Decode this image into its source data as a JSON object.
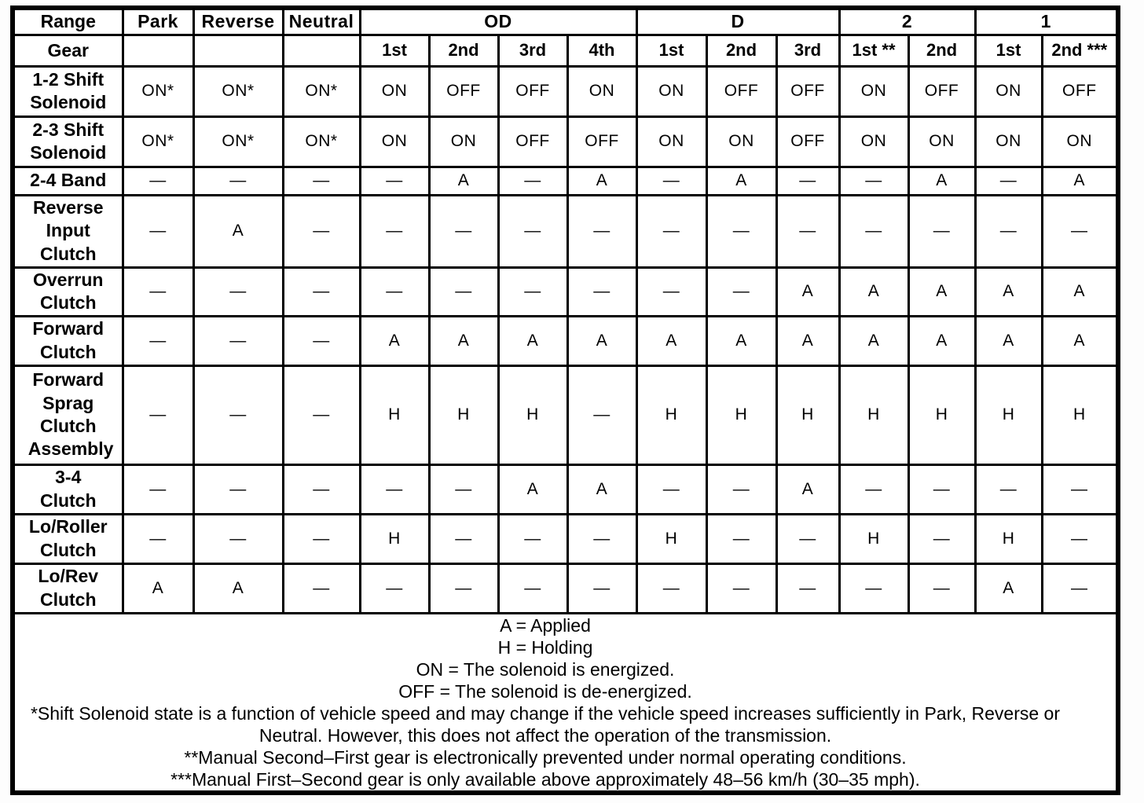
{
  "table": {
    "header": {
      "range_label": "Range",
      "gear_label": "Gear",
      "single_ranges": [
        "Park",
        "Reverse",
        "Neutral"
      ],
      "grouped_ranges": [
        {
          "label": "OD",
          "gears": [
            "1st",
            "2nd",
            "3rd",
            "4th"
          ]
        },
        {
          "label": "D",
          "gears": [
            "1st",
            "2nd",
            "3rd"
          ]
        },
        {
          "label": "2",
          "gears": [
            "1st **",
            "2nd"
          ]
        },
        {
          "label": "1",
          "gears": [
            "1st",
            "2nd ***"
          ]
        }
      ]
    },
    "rows": [
      {
        "label": "1-2 Shift Solenoid",
        "values": [
          "ON*",
          "ON*",
          "ON*",
          "ON",
          "OFF",
          "OFF",
          "ON",
          "ON",
          "OFF",
          "OFF",
          "ON",
          "OFF",
          "ON",
          "OFF"
        ]
      },
      {
        "label": "2-3 Shift Solenoid",
        "values": [
          "ON*",
          "ON*",
          "ON*",
          "ON",
          "ON",
          "OFF",
          "OFF",
          "ON",
          "ON",
          "OFF",
          "ON",
          "ON",
          "ON",
          "ON"
        ]
      },
      {
        "label": "2-4 Band",
        "values": [
          "—",
          "—",
          "—",
          "—",
          "A",
          "—",
          "A",
          "—",
          "A",
          "—",
          "—",
          "A",
          "—",
          "A"
        ]
      },
      {
        "label": "Reverse Input Clutch",
        "values": [
          "—",
          "A",
          "—",
          "—",
          "—",
          "—",
          "—",
          "—",
          "—",
          "—",
          "—",
          "—",
          "—",
          "—"
        ]
      },
      {
        "label": "Overrun Clutch",
        "values": [
          "—",
          "—",
          "—",
          "—",
          "—",
          "—",
          "—",
          "—",
          "—",
          "A",
          "A",
          "A",
          "A",
          "A"
        ]
      },
      {
        "label": "Forward Clutch",
        "values": [
          "—",
          "—",
          "—",
          "A",
          "A",
          "A",
          "A",
          "A",
          "A",
          "A",
          "A",
          "A",
          "A",
          "A"
        ]
      },
      {
        "label": "Forward Sprag Clutch Assembly",
        "values": [
          "—",
          "—",
          "—",
          "H",
          "H",
          "H",
          "—",
          "H",
          "H",
          "H",
          "H",
          "H",
          "H",
          "H"
        ]
      },
      {
        "label": "3-4 Clutch",
        "values": [
          "—",
          "—",
          "—",
          "—",
          "—",
          "A",
          "A",
          "—",
          "—",
          "A",
          "—",
          "—",
          "—",
          "—"
        ]
      },
      {
        "label": "Lo/Roller Clutch",
        "values": [
          "—",
          "—",
          "—",
          "H",
          "—",
          "—",
          "—",
          "H",
          "—",
          "—",
          "H",
          "—",
          "H",
          "—"
        ]
      },
      {
        "label": "Lo/Rev Clutch",
        "values": [
          "A",
          "A",
          "—",
          "—",
          "—",
          "—",
          "—",
          "—",
          "—",
          "—",
          "—",
          "—",
          "A",
          "—"
        ]
      }
    ]
  },
  "footnotes": [
    "A = Applied",
    "H = Holding",
    "ON = The solenoid is energized.",
    "OFF = The solenoid is de-energized.",
    "*Shift Solenoid state is a function of vehicle speed and may change if the vehicle speed increases sufficiently in Park, Reverse or Neutral. However, this does not affect the operation of the transmission.",
    "**Manual Second–First gear is electronically prevented under normal operating conditions.",
    "***Manual First–Second gear is only available above approximately 48–56 km/h (30–35 mph)."
  ]
}
